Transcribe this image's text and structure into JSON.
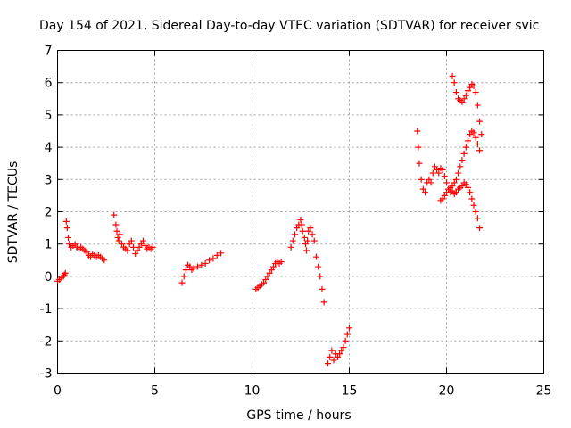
{
  "chart_data": {
    "type": "scatter",
    "title": "Day 154 of 2021, Sidereal Day-to-day VTEC variation (SDTVAR) for receiver svic",
    "xlabel": "GPS time / hours",
    "ylabel": "SDTVAR / TECUs",
    "xlim": [
      0,
      25
    ],
    "ylim": [
      -3,
      7
    ],
    "xticks": [
      "0",
      "5",
      "10",
      "15",
      "20",
      "25"
    ],
    "yticks": [
      "-3",
      "-2",
      "-1",
      "0",
      "1",
      "2",
      "3",
      "4",
      "5",
      "6",
      "7"
    ],
    "grid": true,
    "marker": "+",
    "color": "#ff0000",
    "series": [
      {
        "name": "segment-1",
        "points": [
          [
            0.0,
            -0.15
          ],
          [
            0.1,
            -0.1
          ],
          [
            0.2,
            -0.05
          ],
          [
            0.3,
            0.0
          ],
          [
            0.35,
            0.05
          ],
          [
            0.4,
            0.1
          ]
        ]
      },
      {
        "name": "segment-2",
        "points": [
          [
            0.45,
            1.7
          ],
          [
            0.5,
            1.5
          ],
          [
            0.55,
            1.2
          ],
          [
            0.6,
            1.0
          ],
          [
            0.7,
            0.9
          ],
          [
            0.8,
            0.95
          ],
          [
            0.9,
            1.0
          ],
          [
            1.0,
            0.9
          ],
          [
            1.1,
            0.85
          ],
          [
            1.2,
            0.9
          ],
          [
            1.3,
            0.85
          ],
          [
            1.4,
            0.8
          ],
          [
            1.5,
            0.75
          ],
          [
            1.6,
            0.65
          ],
          [
            1.7,
            0.6
          ],
          [
            1.8,
            0.7
          ],
          [
            1.9,
            0.65
          ],
          [
            2.0,
            0.6
          ],
          [
            2.1,
            0.65
          ],
          [
            2.2,
            0.6
          ],
          [
            2.3,
            0.55
          ],
          [
            2.4,
            0.5
          ]
        ]
      },
      {
        "name": "segment-3",
        "points": [
          [
            2.9,
            1.9
          ],
          [
            3.0,
            1.6
          ],
          [
            3.05,
            1.4
          ],
          [
            3.1,
            1.2
          ],
          [
            3.15,
            1.1
          ],
          [
            3.2,
            1.3
          ],
          [
            3.3,
            1.0
          ],
          [
            3.4,
            0.9
          ],
          [
            3.5,
            0.85
          ],
          [
            3.6,
            0.8
          ],
          [
            3.7,
            1.0
          ],
          [
            3.8,
            1.1
          ],
          [
            3.9,
            0.9
          ],
          [
            4.0,
            0.7
          ],
          [
            4.1,
            0.8
          ],
          [
            4.2,
            0.9
          ],
          [
            4.3,
            1.0
          ],
          [
            4.4,
            1.1
          ],
          [
            4.5,
            0.95
          ],
          [
            4.6,
            0.85
          ],
          [
            4.7,
            0.9
          ],
          [
            4.8,
            0.85
          ],
          [
            4.9,
            0.9
          ]
        ]
      },
      {
        "name": "segment-4",
        "points": [
          [
            6.4,
            -0.2
          ],
          [
            6.5,
            0.0
          ],
          [
            6.6,
            0.2
          ],
          [
            6.7,
            0.35
          ],
          [
            6.8,
            0.3
          ],
          [
            6.9,
            0.2
          ],
          [
            7.0,
            0.25
          ],
          [
            7.2,
            0.3
          ],
          [
            7.4,
            0.35
          ],
          [
            7.6,
            0.4
          ],
          [
            7.8,
            0.5
          ],
          [
            8.0,
            0.55
          ],
          [
            8.2,
            0.65
          ],
          [
            8.4,
            0.72
          ]
        ]
      },
      {
        "name": "segment-5",
        "points": [
          [
            10.2,
            -0.4
          ],
          [
            10.3,
            -0.35
          ],
          [
            10.4,
            -0.3
          ],
          [
            10.5,
            -0.25
          ],
          [
            10.6,
            -0.2
          ],
          [
            10.7,
            -0.1
          ],
          [
            10.8,
            0.0
          ],
          [
            10.9,
            0.1
          ],
          [
            11.0,
            0.2
          ],
          [
            11.1,
            0.3
          ],
          [
            11.2,
            0.4
          ],
          [
            11.3,
            0.45
          ],
          [
            11.4,
            0.4
          ],
          [
            11.5,
            0.45
          ]
        ]
      },
      {
        "name": "segment-6",
        "points": [
          [
            12.0,
            0.9
          ],
          [
            12.1,
            1.1
          ],
          [
            12.2,
            1.3
          ],
          [
            12.3,
            1.5
          ],
          [
            12.4,
            1.6
          ],
          [
            12.5,
            1.75
          ],
          [
            12.55,
            1.6
          ],
          [
            12.6,
            1.4
          ],
          [
            12.7,
            1.2
          ],
          [
            12.75,
            1.0
          ],
          [
            12.8,
            0.8
          ],
          [
            12.85,
            1.1
          ],
          [
            12.9,
            1.4
          ],
          [
            13.0,
            1.5
          ],
          [
            13.1,
            1.3
          ],
          [
            13.2,
            1.1
          ],
          [
            13.3,
            0.6
          ],
          [
            13.4,
            0.3
          ],
          [
            13.5,
            0.0
          ],
          [
            13.6,
            -0.4
          ],
          [
            13.7,
            -0.8
          ]
        ]
      },
      {
        "name": "segment-7",
        "points": [
          [
            13.9,
            -2.7
          ],
          [
            14.0,
            -2.5
          ],
          [
            14.1,
            -2.3
          ],
          [
            14.2,
            -2.6
          ],
          [
            14.3,
            -2.4
          ],
          [
            14.4,
            -2.5
          ],
          [
            14.5,
            -2.4
          ],
          [
            14.6,
            -2.3
          ],
          [
            14.7,
            -2.2
          ],
          [
            14.8,
            -2.0
          ],
          [
            14.9,
            -1.8
          ],
          [
            15.0,
            -1.6
          ]
        ]
      },
      {
        "name": "segment-8",
        "points": [
          [
            18.5,
            4.5
          ],
          [
            18.55,
            4.0
          ],
          [
            18.6,
            3.5
          ],
          [
            18.7,
            3.0
          ],
          [
            18.8,
            2.7
          ],
          [
            18.9,
            2.6
          ],
          [
            19.0,
            2.9
          ],
          [
            19.1,
            3.0
          ],
          [
            19.2,
            2.9
          ],
          [
            19.3,
            3.2
          ],
          [
            19.4,
            3.4
          ],
          [
            19.5,
            3.3
          ],
          [
            19.6,
            3.2
          ],
          [
            19.7,
            3.35
          ],
          [
            19.8,
            3.3
          ],
          [
            19.9,
            3.1
          ],
          [
            20.0,
            2.9
          ],
          [
            20.1,
            2.7
          ],
          [
            20.2,
            2.6
          ],
          [
            20.3,
            2.65
          ],
          [
            20.4,
            2.55
          ],
          [
            20.5,
            2.6
          ],
          [
            20.6,
            2.7
          ],
          [
            20.7,
            2.75
          ],
          [
            20.8,
            2.8
          ],
          [
            20.9,
            2.9
          ],
          [
            21.0,
            2.85
          ],
          [
            21.1,
            2.75
          ],
          [
            21.2,
            2.6
          ],
          [
            21.3,
            2.4
          ],
          [
            21.4,
            2.2
          ],
          [
            21.5,
            2.0
          ],
          [
            21.6,
            1.8
          ],
          [
            21.7,
            1.5
          ]
        ]
      },
      {
        "name": "segment-9",
        "points": [
          [
            19.7,
            2.35
          ],
          [
            19.8,
            2.4
          ],
          [
            19.9,
            2.5
          ],
          [
            20.0,
            2.6
          ],
          [
            20.1,
            2.7
          ],
          [
            20.2,
            2.75
          ],
          [
            20.3,
            2.8
          ],
          [
            20.4,
            2.9
          ],
          [
            20.5,
            3.0
          ],
          [
            20.6,
            3.2
          ],
          [
            20.7,
            3.4
          ],
          [
            20.8,
            3.6
          ],
          [
            20.9,
            3.8
          ],
          [
            21.0,
            4.0
          ],
          [
            21.1,
            4.2
          ],
          [
            21.2,
            4.4
          ],
          [
            21.3,
            4.5
          ],
          [
            21.4,
            4.45
          ],
          [
            21.5,
            4.3
          ],
          [
            21.6,
            4.1
          ],
          [
            21.7,
            3.9
          ]
        ]
      },
      {
        "name": "segment-10",
        "points": [
          [
            20.3,
            6.2
          ],
          [
            20.4,
            6.0
          ],
          [
            20.5,
            5.7
          ],
          [
            20.6,
            5.5
          ],
          [
            20.7,
            5.45
          ],
          [
            20.8,
            5.4
          ],
          [
            20.9,
            5.5
          ],
          [
            21.0,
            5.6
          ],
          [
            21.1,
            5.75
          ],
          [
            21.2,
            5.85
          ],
          [
            21.3,
            5.95
          ],
          [
            21.4,
            5.9
          ],
          [
            21.5,
            5.7
          ],
          [
            21.6,
            5.3
          ],
          [
            21.7,
            4.8
          ],
          [
            21.8,
            4.4
          ]
        ]
      }
    ]
  }
}
